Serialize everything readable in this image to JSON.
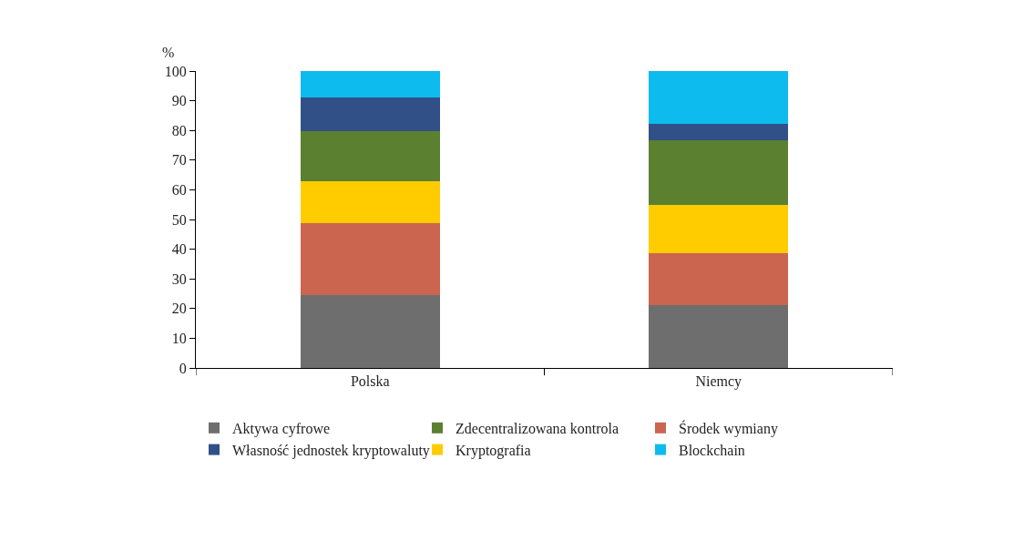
{
  "chart_data": {
    "type": "bar",
    "stacked": true,
    "ylabel": "%",
    "categories": [
      "Polska",
      "Niemcy"
    ],
    "ylim": [
      0,
      100
    ],
    "yticks": [
      0,
      10,
      20,
      30,
      40,
      50,
      60,
      70,
      80,
      90,
      100
    ],
    "grid": false,
    "legend": "bottom left",
    "series": [
      {
        "name": "Aktywa cyfrowe",
        "color": "#6e6e6e",
        "values": [
          24.4,
          21.3
        ]
      },
      {
        "name": "Środek wymiany",
        "color": "#cb654f",
        "values": [
          24.3,
          17.4
        ]
      },
      {
        "name": "Kryptografia",
        "color": "#ffcc00",
        "values": [
          14.1,
          16.1
        ]
      },
      {
        "name": "Zdecentralizowana kontrola",
        "color": "#5b8030",
        "values": [
          17.1,
          21.8
        ]
      },
      {
        "name": "Własność jednostek kryptowaluty",
        "color": "#305087",
        "values": [
          11.1,
          5.7
        ]
      },
      {
        "name": "Blockchain",
        "color": "#0dbbee",
        "values": [
          9.0,
          17.7
        ]
      }
    ]
  }
}
